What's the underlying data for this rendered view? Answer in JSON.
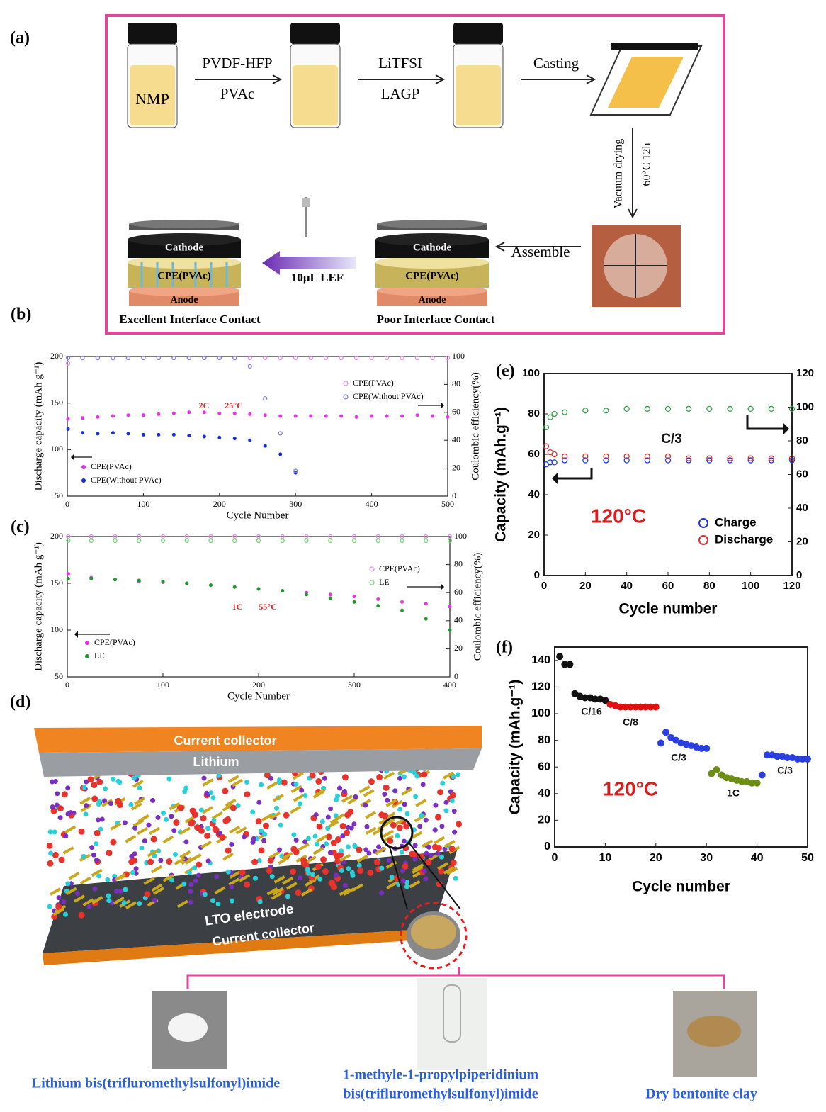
{
  "panel_a": {
    "label": "(a)",
    "solvent": "NMP",
    "step1": [
      "PVDF-HFP",
      "PVAc"
    ],
    "step2": [
      "LiTFSI",
      "LAGP"
    ],
    "casting": "Casting",
    "drying": [
      "Vacuum drying",
      "60°C  12h"
    ],
    "assemble": "Assemble",
    "layers": [
      "Cathode",
      "CPE(PVAc)",
      "Anode"
    ],
    "addition": "10μL   LEF",
    "captions": [
      "Excellent Interface Contact",
      "Poor Interface Contact"
    ]
  },
  "panel_d": {
    "label": "(d)",
    "layers": [
      "Current collector",
      "Lithium",
      "LTO electrode",
      "Current collector"
    ],
    "components": [
      [
        "Lithium bis(trifluromethylsulfonyl)imide"
      ],
      [
        "1-methyle-1-propylpiperidinium",
        "bis(trifluromethylsulfonyl)imide"
      ],
      [
        "Dry bentonite clay"
      ]
    ]
  },
  "chart_data": [
    {
      "type": "scatter",
      "panel": "(b)",
      "xlabel": "Cycle Number",
      "ylabel": "Discharge capacity (mAh g⁻¹)",
      "y2label": "Coulombic efficiency(%)",
      "xlim": [
        0,
        500
      ],
      "xticks": [
        0,
        100,
        200,
        300,
        400,
        500
      ],
      "ylim": [
        50,
        200
      ],
      "yticks": [
        50,
        100,
        150,
        200
      ],
      "y2lim": [
        0,
        100
      ],
      "y2ticks": [
        0,
        20,
        40,
        60,
        80,
        100
      ],
      "legend": "lower left",
      "legend2": "upper right",
      "annotations": [
        {
          "text": "2C",
          "color": "#e8202a"
        },
        {
          "text": "25°C",
          "color": "#e8202a"
        }
      ],
      "series": [
        {
          "name": "CPE(PVAc)",
          "color": "#e632e6",
          "marker": "filled",
          "x": [
            1,
            20,
            40,
            60,
            80,
            100,
            120,
            140,
            160,
            180,
            200,
            220,
            240,
            260,
            280,
            300,
            320,
            340,
            360,
            380,
            400,
            420,
            440,
            460,
            480,
            500
          ],
          "values": [
            133,
            134,
            135,
            136,
            137,
            137,
            138,
            139,
            140,
            140,
            139,
            139,
            138,
            137,
            136,
            136,
            136,
            136,
            136,
            135,
            136,
            136,
            136,
            137,
            136,
            135
          ]
        },
        {
          "name": "CPE(Without PVAc)",
          "color": "#1a2fd6",
          "marker": "filled",
          "x": [
            1,
            20,
            40,
            60,
            80,
            100,
            120,
            140,
            160,
            180,
            200,
            220,
            240,
            260,
            280,
            300
          ],
          "values": [
            122,
            118,
            117,
            118,
            117,
            116,
            116,
            116,
            115,
            114,
            113,
            112,
            110,
            104,
            95,
            75
          ]
        },
        {
          "name": "CPE(PVAc)",
          "color": "#e58ee5",
          "marker": "open",
          "axis": "y2",
          "x": [
            1,
            20,
            40,
            60,
            80,
            100,
            120,
            140,
            160,
            180,
            200,
            220,
            240,
            260,
            280,
            300,
            320,
            340,
            360,
            380,
            400,
            420,
            440,
            460,
            480,
            500
          ],
          "values": [
            95,
            99,
            99,
            99,
            99,
            99,
            99,
            99,
            99,
            99,
            99,
            99,
            99,
            99,
            99,
            99,
            99,
            99,
            99,
            99,
            99,
            99,
            99,
            99,
            99,
            99
          ]
        },
        {
          "name": "CPE(Without PVAc)",
          "color": "#7f7fe0",
          "marker": "open",
          "axis": "y2",
          "x": [
            1,
            20,
            40,
            60,
            80,
            100,
            120,
            140,
            160,
            180,
            200,
            220,
            240,
            260,
            280,
            300
          ],
          "values": [
            99,
            99,
            99,
            99,
            99,
            99,
            99,
            99,
            99,
            99,
            99,
            99,
            93,
            70,
            45,
            18
          ]
        }
      ]
    },
    {
      "type": "scatter",
      "panel": "(c)",
      "xlabel": "Cycle Number",
      "ylabel": "Discharge capacity (mAh g⁻¹)",
      "y2label": "Coulombic efficiency(%)",
      "xlim": [
        0,
        400
      ],
      "xticks": [
        0,
        100,
        200,
        300,
        400
      ],
      "ylim": [
        50,
        200
      ],
      "yticks": [
        50,
        100,
        150,
        200
      ],
      "y2lim": [
        0,
        100
      ],
      "y2ticks": [
        0,
        20,
        40,
        60,
        80,
        100
      ],
      "legend": "lower left",
      "legend2": "upper right",
      "annotations": [
        {
          "text": "1C",
          "color": "#e8202a"
        },
        {
          "text": "55°C",
          "color": "#e8202a"
        }
      ],
      "series": [
        {
          "name": "CPE(PVAc)",
          "color": "#e632e6",
          "marker": "filled",
          "x": [
            1,
            25,
            50,
            75,
            100,
            125,
            150,
            175,
            200,
            225,
            250,
            275,
            300,
            325,
            350,
            375,
            400
          ],
          "values": [
            160,
            156,
            154,
            152,
            151,
            150,
            148,
            146,
            144,
            142,
            140,
            138,
            136,
            133,
            130,
            128,
            125
          ]
        },
        {
          "name": "LE",
          "color": "#1d9a2f",
          "marker": "filled",
          "x": [
            1,
            25,
            50,
            75,
            100,
            125,
            150,
            175,
            200,
            225,
            250,
            275,
            300,
            325,
            350,
            375,
            400
          ],
          "values": [
            155,
            155,
            154,
            153,
            152,
            150,
            148,
            146,
            144,
            142,
            138,
            134,
            130,
            126,
            121,
            112,
            100
          ]
        },
        {
          "name": "CPE(PVAc)",
          "color": "#e58ee5",
          "marker": "open",
          "axis": "y2",
          "x": [
            1,
            25,
            50,
            75,
            100,
            125,
            150,
            175,
            200,
            225,
            250,
            275,
            300,
            325,
            350,
            375,
            400
          ],
          "values": [
            100,
            100,
            100,
            100,
            100,
            100,
            100,
            100,
            100,
            100,
            100,
            100,
            100,
            100,
            100,
            100,
            100
          ]
        },
        {
          "name": "LE",
          "color": "#7ccf7c",
          "marker": "open",
          "axis": "y2",
          "x": [
            1,
            25,
            50,
            75,
            100,
            125,
            150,
            175,
            200,
            225,
            250,
            275,
            300,
            325,
            350,
            375,
            400
          ],
          "values": [
            97,
            97,
            97,
            97,
            97,
            97,
            97,
            97,
            97,
            97,
            97,
            97,
            97,
            97,
            97,
            97,
            97
          ]
        }
      ]
    },
    {
      "type": "scatter",
      "panel": "(e)",
      "xlabel": "Cycle number",
      "ylabel": "Capacity (mAh.g⁻¹)",
      "xlim": [
        0,
        120
      ],
      "xticks": [
        0,
        20,
        40,
        60,
        80,
        100,
        120
      ],
      "ylim": [
        0,
        100
      ],
      "yticks": [
        0,
        20,
        40,
        60,
        80,
        100
      ],
      "y2lim": [
        0,
        120
      ],
      "y2ticks": [
        0,
        20,
        40,
        60,
        80,
        100,
        120
      ],
      "legend": "lower right",
      "annotations": [
        {
          "text": "C/3",
          "color": "#111111"
        },
        {
          "text": "120°C",
          "color": "#d42020"
        }
      ],
      "series": [
        {
          "name": "Charge",
          "color": "#2036e0",
          "marker": "open",
          "x": [
            1,
            3,
            5,
            10,
            20,
            30,
            40,
            50,
            60,
            70,
            80,
            90,
            100,
            110,
            120
          ],
          "values": [
            55,
            56,
            56,
            57,
            57,
            57,
            57,
            57,
            57,
            57,
            57,
            57,
            57,
            57,
            57
          ]
        },
        {
          "name": "Discharge",
          "color": "#e03030",
          "marker": "open",
          "x": [
            1,
            3,
            5,
            10,
            20,
            30,
            40,
            50,
            60,
            70,
            80,
            90,
            100,
            110,
            120
          ],
          "values": [
            64,
            61,
            60,
            59,
            59,
            59,
            59,
            59,
            59,
            58,
            58,
            58,
            58,
            58,
            58
          ]
        },
        {
          "color": "#2ea043",
          "marker": "open",
          "axis": "y2",
          "x": [
            1,
            3,
            5,
            10,
            20,
            30,
            40,
            50,
            60,
            70,
            80,
            90,
            100,
            110,
            120
          ],
          "values": [
            88,
            94,
            96,
            97,
            98,
            98,
            99,
            99,
            99,
            99,
            99,
            99,
            99,
            99,
            99
          ]
        }
      ]
    },
    {
      "type": "scatter",
      "panel": "(f)",
      "xlabel": "Cycle number",
      "ylabel": "Capacity (mAh.g⁻¹)",
      "xlim": [
        0,
        50
      ],
      "xticks": [
        0,
        10,
        20,
        30,
        40,
        50
      ],
      "ylim": [
        0,
        150
      ],
      "yticks": [
        0,
        20,
        40,
        60,
        80,
        100,
        120,
        140
      ],
      "annotations": [
        {
          "text": "C/16",
          "color": "#111111"
        },
        {
          "text": "C/8",
          "color": "#111111"
        },
        {
          "text": "C/3",
          "color": "#111111"
        },
        {
          "text": "1C",
          "color": "#111111"
        },
        {
          "text": "C/3",
          "color": "#111111"
        },
        {
          "text": "120°C",
          "color": "#d42020"
        }
      ],
      "series": [
        {
          "color": "#111111",
          "marker": "filled",
          "x": [
            1,
            2,
            3,
            4,
            5,
            6,
            7,
            8,
            9,
            10
          ],
          "values": [
            143,
            137,
            137,
            115,
            113,
            112,
            112,
            111,
            111,
            110
          ]
        },
        {
          "color": "#e01010",
          "marker": "filled",
          "x": [
            11,
            12,
            13,
            14,
            15,
            16,
            17,
            18,
            19,
            20
          ],
          "values": [
            107,
            106,
            105,
            105,
            105,
            105,
            105,
            105,
            105,
            105
          ]
        },
        {
          "color": "#2a3fe0",
          "marker": "filled",
          "x": [
            21,
            22,
            23,
            24,
            25,
            26,
            27,
            28,
            29,
            30
          ],
          "values": [
            78,
            86,
            82,
            80,
            78,
            77,
            76,
            75,
            74,
            74
          ]
        },
        {
          "color": "#6b8e14",
          "marker": "filled",
          "x": [
            31,
            32,
            33,
            34,
            35,
            36,
            37,
            38,
            39,
            40
          ],
          "values": [
            55,
            58,
            54,
            52,
            51,
            50,
            49,
            49,
            48,
            48
          ]
        },
        {
          "color": "#2a3fe0",
          "marker": "filled",
          "x": [
            41,
            42,
            43,
            44,
            45,
            46,
            47,
            48,
            49,
            50
          ],
          "values": [
            54,
            69,
            69,
            68,
            68,
            67,
            67,
            66,
            66,
            66
          ]
        }
      ]
    }
  ]
}
